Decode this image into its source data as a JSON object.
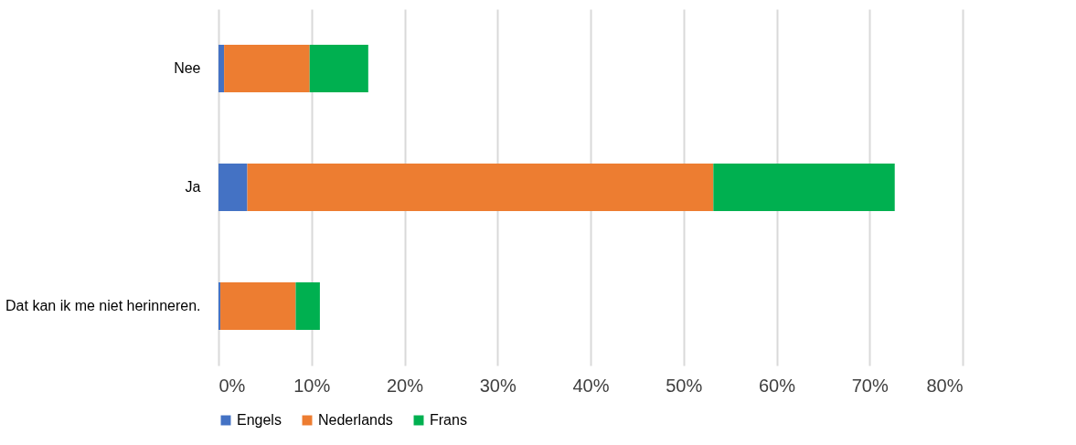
{
  "chart_data": {
    "type": "bar",
    "orientation": "horizontal",
    "stacked": true,
    "categories": [
      "Nee",
      "Ja",
      "Dat kan ik me niet herinneren."
    ],
    "series": [
      {
        "name": "Engels",
        "color": "#4472c4",
        "values": [
          0.6,
          3.1,
          0.2
        ]
      },
      {
        "name": "Nederlands",
        "color": "#ed7d31",
        "values": [
          9.2,
          50.1,
          8.1
        ]
      },
      {
        "name": "Frans",
        "color": "#00b050",
        "values": [
          6.3,
          19.5,
          2.6
        ]
      }
    ],
    "xlim": [
      0,
      80
    ],
    "xticks": [
      {
        "value": 0,
        "label": "0%"
      },
      {
        "value": 10,
        "label": "10%"
      },
      {
        "value": 20,
        "label": "20%"
      },
      {
        "value": 30,
        "label": "30%"
      },
      {
        "value": 40,
        "label": "40%"
      },
      {
        "value": 50,
        "label": "50%"
      },
      {
        "value": 60,
        "label": "60%"
      },
      {
        "value": 70,
        "label": "70%"
      },
      {
        "value": 80,
        "label": "80%"
      }
    ],
    "grid": "x",
    "legend": "bottom"
  }
}
